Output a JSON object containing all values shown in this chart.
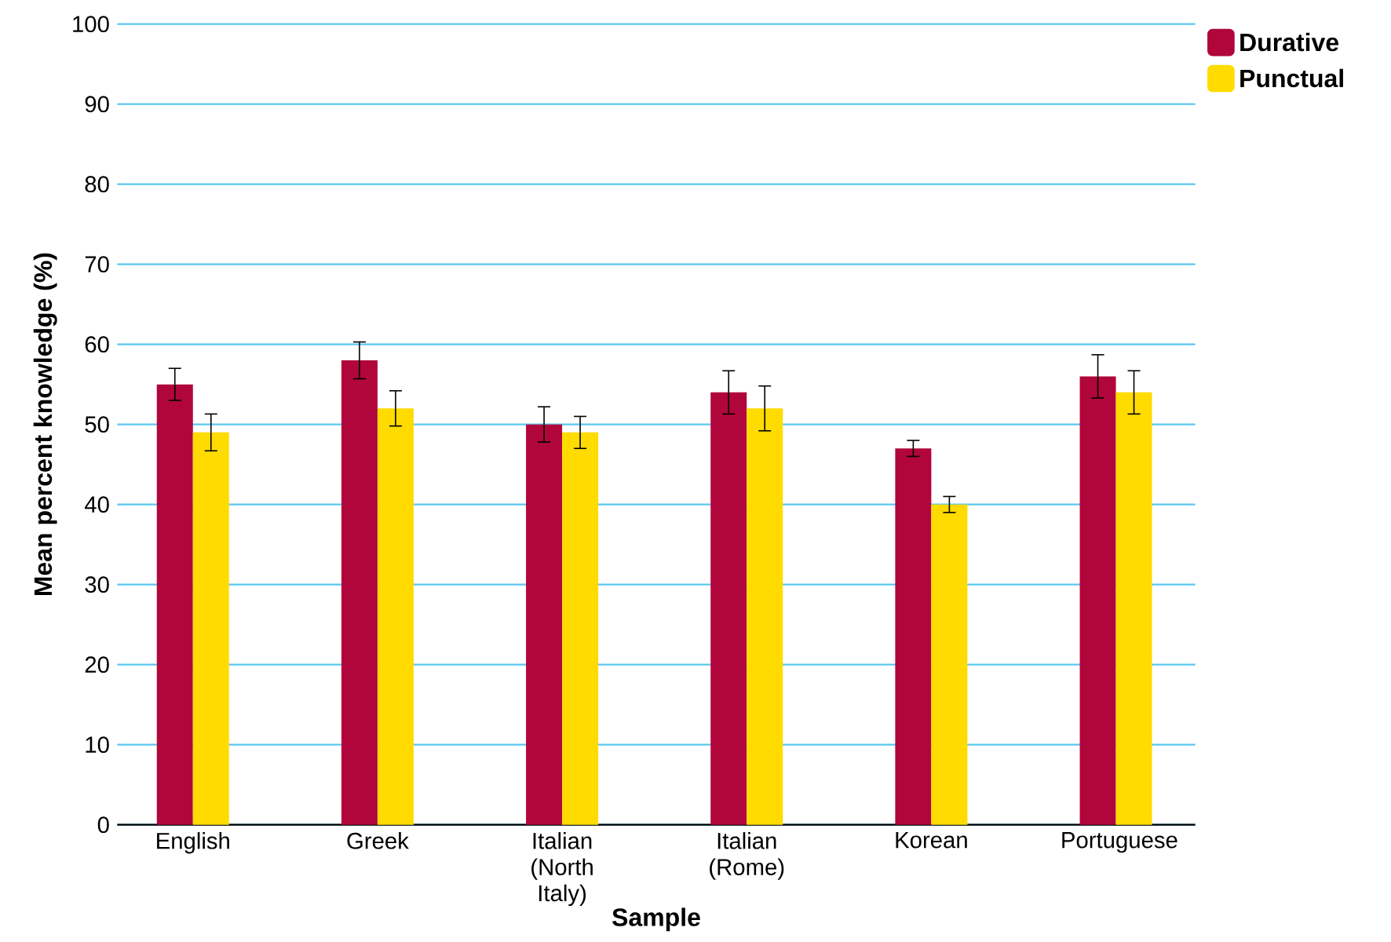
{
  "chart_data": {
    "type": "bar",
    "xlabel": "Sample",
    "ylabel": "Mean percent knowledge (%)",
    "categories": [
      "English",
      "Greek",
      "Italian (North Italy)",
      "Italian (Rome)",
      "Korean",
      "Portuguese"
    ],
    "series": [
      {
        "name": "Durative",
        "color": "#b0063c",
        "values": [
          55,
          58,
          50,
          54,
          47,
          56
        ],
        "errors": [
          2,
          2.3,
          2.2,
          2.7,
          1,
          2.7
        ]
      },
      {
        "name": "Punctual",
        "color": "#ffdb00",
        "values": [
          49,
          52,
          49,
          52,
          40,
          54
        ],
        "errors": [
          2.3,
          2.2,
          2,
          2.8,
          1,
          2.7
        ]
      }
    ],
    "ylim": [
      0,
      100
    ],
    "yticks": [
      0,
      10,
      20,
      30,
      40,
      50,
      60,
      70,
      80,
      90,
      100
    ],
    "grid": "y",
    "legend": "top right"
  }
}
